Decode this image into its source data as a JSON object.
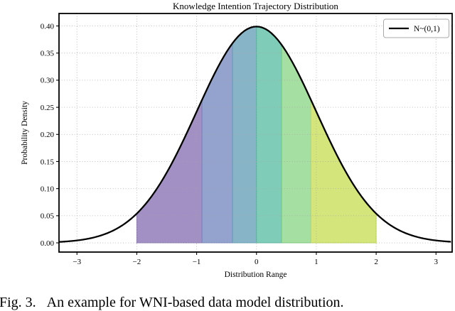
{
  "figure": {
    "caption": "Fig. 3.   An example for WNI-based data model distribution."
  },
  "chart_data": {
    "type": "area",
    "title": "Knowledge Intention Trajectory Distribution",
    "xlabel": "Distribution Range",
    "ylabel": "Probability Density",
    "grid": true,
    "legend": {
      "label": "N~(0,1)",
      "line_color": "#000000",
      "position": "upper right"
    },
    "xlim": [
      -3.3,
      3.27
    ],
    "ylim": [
      -0.017,
      0.423
    ],
    "x_ticks": [
      {
        "value": -3,
        "label": "−3"
      },
      {
        "value": -2,
        "label": "−2"
      },
      {
        "value": -1,
        "label": "−1"
      },
      {
        "value": 0,
        "label": "0"
      },
      {
        "value": 1,
        "label": "1"
      },
      {
        "value": 2,
        "label": "2"
      },
      {
        "value": 3,
        "label": "3"
      }
    ],
    "y_ticks": [
      {
        "value": 0.0,
        "label": "0.00"
      },
      {
        "value": 0.05,
        "label": "0.05"
      },
      {
        "value": 0.1,
        "label": "0.10"
      },
      {
        "value": 0.15,
        "label": "0.15"
      },
      {
        "value": 0.2,
        "label": "0.20"
      },
      {
        "value": 0.25,
        "label": "0.25"
      },
      {
        "value": 0.3,
        "label": "0.30"
      },
      {
        "value": 0.35,
        "label": "0.35"
      },
      {
        "value": 0.4,
        "label": "0.40"
      }
    ],
    "curve": {
      "name": "N~(0,1)",
      "distribution": "normal",
      "mean": 0,
      "std": 1,
      "color": "#000000",
      "points": [
        {
          "x": -3,
          "y": 0.0044
        },
        {
          "x": -2,
          "y": 0.054
        },
        {
          "x": -1,
          "y": 0.242
        },
        {
          "x": 0,
          "y": 0.3989
        },
        {
          "x": 1,
          "y": 0.242
        },
        {
          "x": 2,
          "y": 0.054
        },
        {
          "x": 3,
          "y": 0.0044
        }
      ]
    },
    "bands": [
      {
        "from": -2.0,
        "to": -0.91,
        "fill": "#a28fc3",
        "edge": "#8a74b0"
      },
      {
        "from": -0.91,
        "to": -0.4,
        "fill": "#93a3ce",
        "edge": "#7286bd"
      },
      {
        "from": -0.4,
        "to": 0.0,
        "fill": "#88b4c8",
        "edge": "#5f9fb7"
      },
      {
        "from": 0.0,
        "to": 0.42,
        "fill": "#7fccb8",
        "edge": "#52b89e"
      },
      {
        "from": 0.42,
        "to": 0.91,
        "fill": "#a6dfa2",
        "edge": "#77cb76"
      },
      {
        "from": 0.91,
        "to": 2.0,
        "fill": "#d4e57b",
        "edge": "#bcd94f"
      }
    ]
  }
}
